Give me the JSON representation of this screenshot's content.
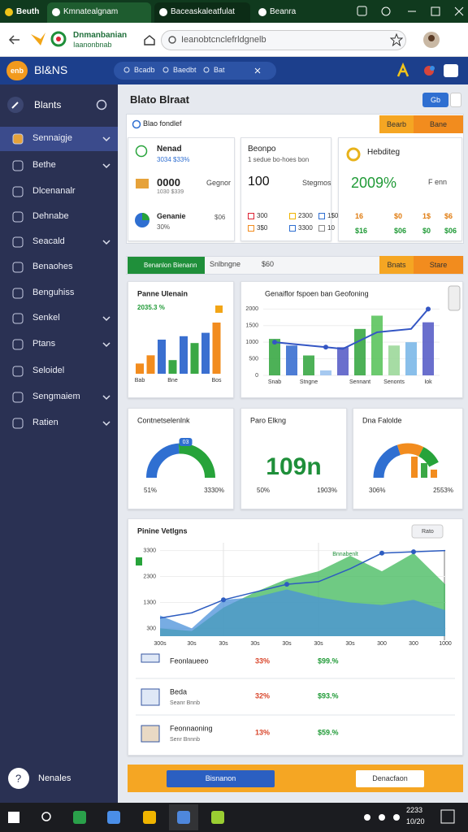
{
  "browser": {
    "tabs": [
      "Beuth",
      "Kmnatealgnam",
      "Baceaskaleatfulat",
      "Beanra"
    ],
    "url": "Ieanobtcnclefrldgnelb",
    "site_name": "Dnmanbanian",
    "site_sub": "Iaanonbnab"
  },
  "header": {
    "logo_badge": "enb",
    "logo": "Bl&NS",
    "search": [
      "Bcadb",
      "Baedbt",
      "Bat"
    ]
  },
  "sidebar": {
    "title": "Blants",
    "items": [
      "Sennaigje",
      "Bethe",
      "Dlcenanalr",
      "Dehnabe",
      "Seacald",
      "Benaohes",
      "Benguhiss",
      "Senkel",
      "Ptans",
      "Seloidel",
      "Sengmaiem",
      "Ratien"
    ],
    "footer": "Nenales"
  },
  "page": {
    "title": "Blato Blraat",
    "action": "Gb"
  },
  "summary": {
    "label": "Blao fondlef",
    "buttons": [
      "Bearb",
      "Bane"
    ],
    "card1": {
      "title": "Nenad",
      "sub": "3034 $33%",
      "value": "0000",
      "value_sub": "1030 $339",
      "note": "Gegnor",
      "row_title": "Genanie",
      "row_sub": "30%",
      "row_value": "$06"
    },
    "card2": {
      "title": "Beonpo",
      "sub": "1 sedue bo-hoes bon",
      "value": "100",
      "note": "Stegmos",
      "grid": [
        "300",
        "2300",
        "1$0",
        "3$0",
        "3300",
        "10"
      ]
    },
    "card3": {
      "title": "Hebditeg",
      "value": "2009%",
      "note": "F enn",
      "grid": [
        "16",
        "$0",
        "1$",
        "$6",
        "$16",
        "$06",
        "$0",
        "$06"
      ]
    }
  },
  "charts_bar": {
    "tabs": [
      "Benanlon Bienann",
      "Snlbngne",
      "$60"
    ],
    "buttons": [
      "Bnats",
      "Stare"
    ]
  },
  "chart_data": [
    {
      "type": "bar",
      "title": "Panne Ulenain",
      "subtitle": "2035.3 %",
      "categories": [
        "Bab",
        null,
        null,
        "Bne",
        null,
        null,
        null,
        "Bos"
      ],
      "values": [
        15,
        27,
        50,
        20,
        55,
        45,
        60,
        75
      ],
      "colors": [
        "#f28c1e",
        "#f28c1e",
        "#3a6fd0",
        "#3aa845",
        "#3a6fd0",
        "#3aa845",
        "#3a6fd0",
        "#f28c1e"
      ],
      "ylim": [
        0,
        100
      ]
    },
    {
      "type": "bar_line",
      "title": "Genaiflor fspoen ban Geofoning",
      "categories": [
        "Snab",
        null,
        "Stngne",
        null,
        null,
        "Sennant",
        null,
        "Senonts",
        null,
        "Iok"
      ],
      "ylim": [
        0,
        2400
      ],
      "yticks": [
        0,
        500,
        1000,
        1500,
        2000
      ],
      "grid": true,
      "series": [
        {
          "type": "bar",
          "colors": [
            "#3aa845",
            "#3a6fd0",
            "#3aa845",
            "#9cc3ee",
            "#5a5fc8",
            "#3aa845",
            "#5cc45e",
            "#9cd89a",
            "#7cb8e8",
            "#5a5fc8"
          ],
          "values": [
            1100,
            900,
            600,
            150,
            850,
            1400,
            1800,
            900,
            1000,
            1600
          ]
        },
        {
          "type": "line",
          "color": "#3456c4",
          "values": [
            1000,
            950,
            900,
            850,
            800,
            1050,
            1300,
            1350,
            1400,
            2000
          ]
        }
      ]
    },
    {
      "type": "area",
      "title": "Pinine Vetlgns",
      "annotation": "Bnnabenlt",
      "categories": [
        "300s",
        "30s",
        "30s",
        "30s",
        "30s",
        "30s",
        "30s",
        "300",
        "300",
        "1000"
      ],
      "ylim": [
        0,
        3600
      ],
      "yticks": [
        300,
        1300,
        2300,
        3300
      ],
      "grid": true,
      "series": [
        {
          "type": "area",
          "color": "#3fb85a",
          "values": [
            300,
            200,
            1100,
            1700,
            2200,
            2500,
            3100,
            2500,
            3200,
            2000
          ]
        },
        {
          "type": "area",
          "color": "#4a90d9",
          "values": [
            800,
            300,
            1400,
            1500,
            1800,
            1500,
            1300,
            1200,
            1400,
            1000
          ]
        },
        {
          "type": "line",
          "color": "#2d5cc0",
          "values": [
            700,
            900,
            1400,
            1700,
            2000,
            2100,
            2600,
            3200,
            3250,
            3300
          ]
        }
      ]
    }
  ],
  "gauges": [
    {
      "title": "Contnetselenlnk",
      "badge": "03",
      "segments": [
        {
          "color": "#2f6fd1",
          "value": 48
        },
        {
          "color": "#27a33a",
          "value": 52
        }
      ],
      "left": "51%",
      "right": "3330%"
    },
    {
      "title": "Paro Elkng",
      "big": "109n",
      "left": "50%",
      "right": "1903%"
    },
    {
      "title": "Dna Falolde",
      "segments": [
        {
          "color": "#2f6fd1",
          "value": 40
        },
        {
          "color": "#f28c1e",
          "value": 25
        },
        {
          "color": "#27a33a",
          "value": 20
        }
      ],
      "left": "306%",
      "right": "2553%"
    }
  ],
  "panel_button": "Rato",
  "table": {
    "rows": [
      {
        "name": "Feonlaueeo",
        "v1": "33%",
        "v2": "$99.%"
      },
      {
        "name": "Beda",
        "sub": "Seanr Bnnb",
        "v1": "32%",
        "v2": "$93.%"
      },
      {
        "name": "Feonnaoning",
        "sub": "Senr Bnnnb",
        "v1": "13%",
        "v2": "$59.%"
      }
    ]
  },
  "footer": {
    "buttons": [
      "Bisnanon",
      "Denacfaon"
    ]
  },
  "taskbar": {
    "time": "2233",
    "date": "10/20"
  }
}
